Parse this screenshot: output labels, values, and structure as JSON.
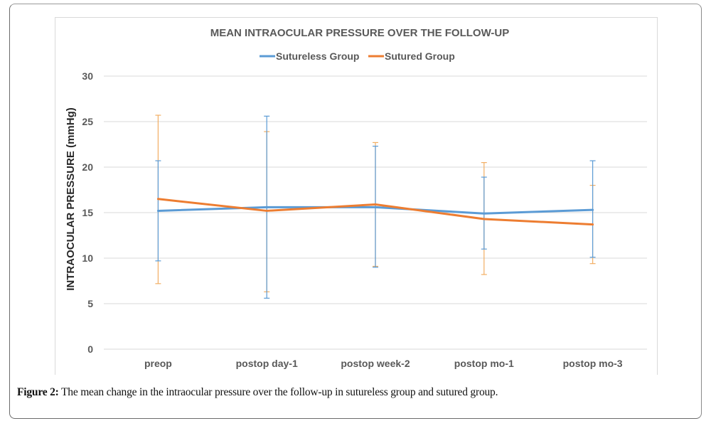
{
  "figure": {
    "caption_label": "Figure 2:",
    "caption_text": " The mean change in the intraocular pressure over the follow-up in sutureless group and sutured group."
  },
  "chart_data": {
    "type": "line",
    "title": "MEAN INTRAOCULAR PRESSURE OVER THE FOLLOW-UP",
    "xlabel": "",
    "ylabel": "INTRAOCULAR PRESSURE (mmHg)",
    "ylim": [
      0,
      30
    ],
    "yticks": [
      0,
      5,
      10,
      15,
      20,
      25,
      30
    ],
    "grid": true,
    "legend_position": "top-center",
    "categories": [
      "preop",
      "postop day-1",
      "postop week-2",
      "postop mo-1",
      "postop mo-3"
    ],
    "series": [
      {
        "name": "Sutureless Group",
        "color": "#5B9BD5",
        "error_color": "#5B9BD5",
        "values": [
          15.2,
          15.6,
          15.6,
          14.9,
          15.3
        ],
        "error_upper": [
          20.7,
          25.6,
          22.3,
          18.9,
          20.7
        ],
        "error_lower": [
          9.7,
          5.6,
          9.0,
          11.0,
          10.1
        ]
      },
      {
        "name": "Sutured Group",
        "color": "#ED7D31",
        "error_color": "#F2AE63",
        "values": [
          16.5,
          15.2,
          15.9,
          14.3,
          13.7
        ],
        "error_upper": [
          25.7,
          23.9,
          22.7,
          20.5,
          18.0
        ],
        "error_lower": [
          7.2,
          6.3,
          9.1,
          8.2,
          9.4
        ]
      }
    ]
  }
}
